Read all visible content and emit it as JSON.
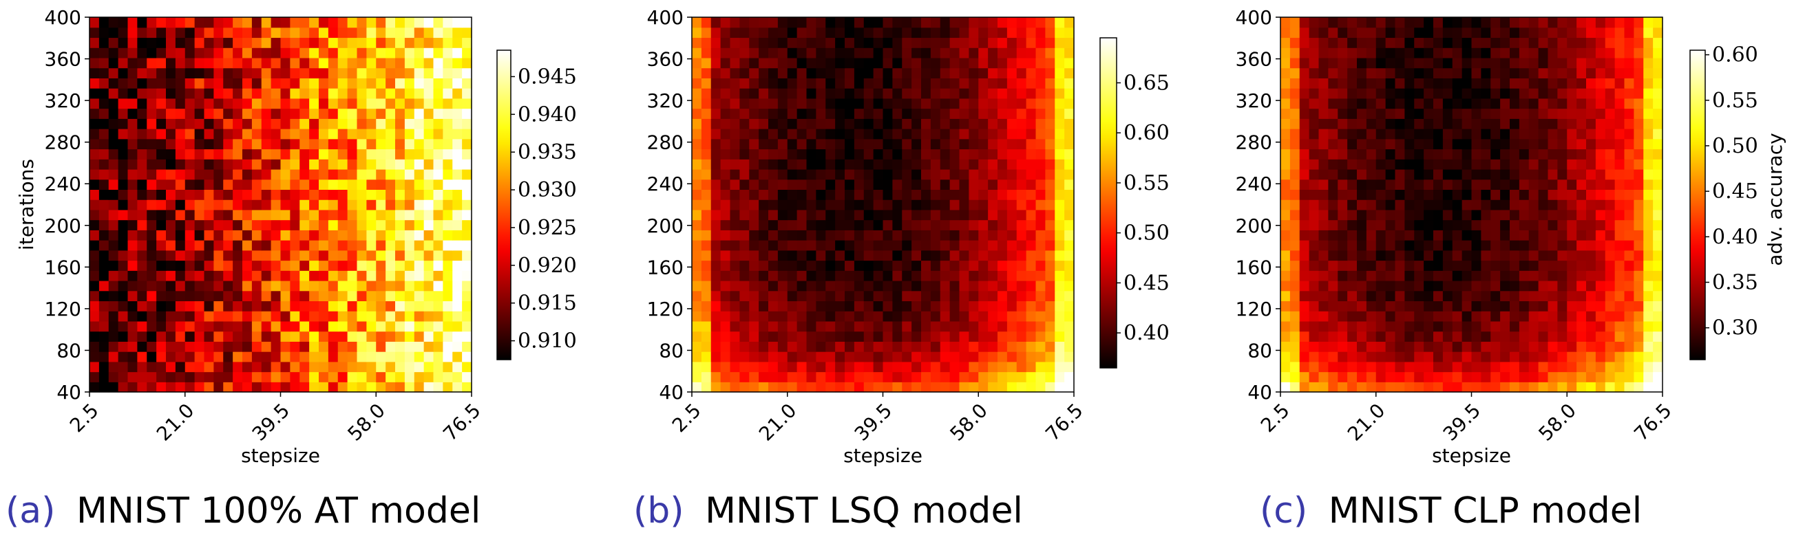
{
  "chart_data": [
    {
      "type": "heatmap",
      "caption_letter": "(a)",
      "caption_text": "MNIST 100% AT model",
      "xlabel": "stepsize",
      "ylabel": "iterations",
      "colorbar_label": "",
      "colormap": "hot",
      "x_ticks": [
        "2.5",
        "21.0",
        "39.5",
        "58.0",
        "76.5"
      ],
      "y_ticks": [
        "40",
        "80",
        "120",
        "160",
        "200",
        "240",
        "280",
        "320",
        "360",
        "400"
      ],
      "x_range": [
        2.5,
        76.5
      ],
      "y_range": [
        40,
        400
      ],
      "grid_cols": 40,
      "grid_rows": 37,
      "color_range": [
        0.9075,
        0.9485
      ],
      "colorbar_ticks": [
        "0.910",
        "0.915",
        "0.920",
        "0.925",
        "0.930",
        "0.935",
        "0.940",
        "0.945"
      ],
      "pattern": "increasing"
    },
    {
      "type": "heatmap",
      "caption_letter": "(b)",
      "caption_text": "MNIST LSQ model",
      "xlabel": "stepsize",
      "ylabel": "",
      "colorbar_label": "",
      "colormap": "hot",
      "x_ticks": [
        "2.5",
        "21.0",
        "39.5",
        "58.0",
        "76.5"
      ],
      "y_ticks": [
        "40",
        "80",
        "120",
        "160",
        "200",
        "240",
        "280",
        "320",
        "360",
        "400"
      ],
      "x_range": [
        2.5,
        76.5
      ],
      "y_range": [
        40,
        400
      ],
      "grid_cols": 40,
      "grid_rows": 37,
      "color_range": [
        0.365,
        0.695
      ],
      "colorbar_ticks": [
        "0.40",
        "0.45",
        "0.50",
        "0.55",
        "0.60",
        "0.65"
      ],
      "pattern": "u-shape"
    },
    {
      "type": "heatmap",
      "caption_letter": "(c)",
      "caption_text": "MNIST CLP model",
      "xlabel": "stepsize",
      "ylabel": "",
      "colorbar_label": "adv. accuracy",
      "colormap": "hot",
      "x_ticks": [
        "2.5",
        "21.0",
        "39.5",
        "58.0",
        "76.5"
      ],
      "y_ticks": [
        "40",
        "80",
        "120",
        "160",
        "200",
        "240",
        "280",
        "320",
        "360",
        "400"
      ],
      "x_range": [
        2.5,
        76.5
      ],
      "y_range": [
        40,
        400
      ],
      "grid_cols": 40,
      "grid_rows": 37,
      "color_range": [
        0.265,
        0.605
      ],
      "colorbar_ticks": [
        "0.30",
        "0.35",
        "0.40",
        "0.45",
        "0.50",
        "0.55",
        "0.60"
      ],
      "pattern": "u-shape"
    }
  ]
}
